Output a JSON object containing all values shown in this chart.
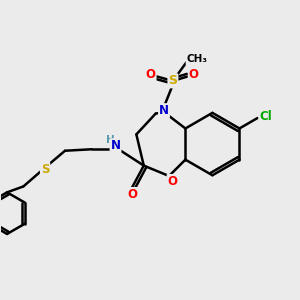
{
  "bg_color": "#ebebeb",
  "bond_color": "#000000",
  "bond_width": 1.8,
  "atom_colors": {
    "N": "#0000cc",
    "O": "#ff0000",
    "S": "#ccaa00",
    "Cl": "#00aa00",
    "C": "#000000",
    "H": "#5599aa"
  },
  "figsize": [
    3.0,
    3.0
  ],
  "dpi": 100
}
